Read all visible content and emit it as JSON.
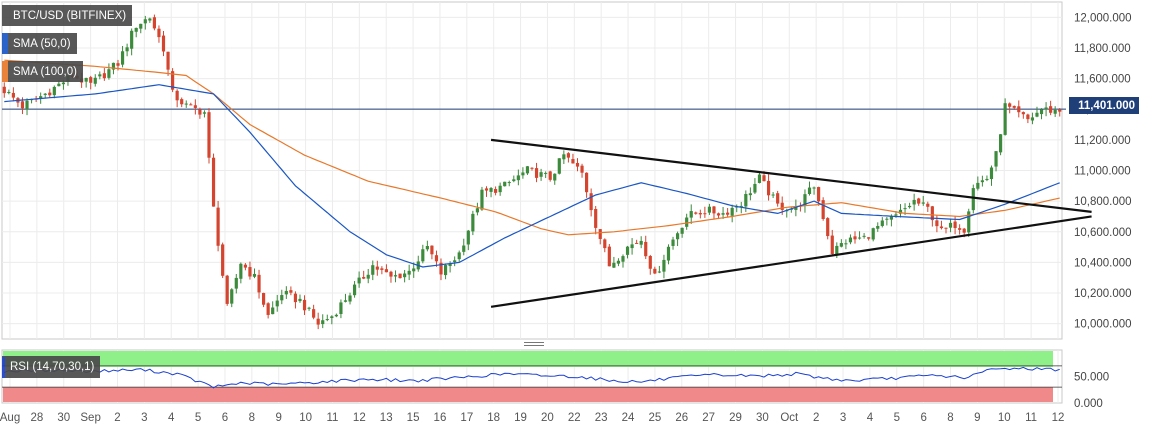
{
  "chart_data": [
    {
      "type": "candlestick",
      "instrument_label": "BTC/USD (BITFINEX)",
      "legend": [
        {
          "label": "BTC/USD (BITFINEX)",
          "color": "#4a4a4a"
        },
        {
          "label": "SMA (50,0)",
          "color": "#1a56c4"
        },
        {
          "label": "SMA (100,0)",
          "color": "#e8782a"
        }
      ],
      "last_price_label": "11,401.000",
      "last_price": 11401,
      "ylim": [
        9900,
        12100
      ],
      "y_ticks": [
        10000,
        10200,
        10400,
        10600,
        10800,
        11000,
        11200,
        11400,
        11600,
        11800,
        12000
      ],
      "y_tick_labels": [
        "10,000.000",
        "10,200.000",
        "10,400.000",
        "10,600.000",
        "10,800.000",
        "11,000.000",
        "11,200.000",
        "11,400.000",
        "11,600.000",
        "11,800.000",
        "12,000.000"
      ],
      "x_tick_labels": [
        "Aug",
        "28",
        "30",
        "Sep",
        "2",
        "3",
        "4",
        "5",
        "6",
        "8",
        "9",
        "10",
        "11",
        "12",
        "13",
        "15",
        "16",
        "17",
        "18",
        "19",
        "20",
        "22",
        "23",
        "24",
        "25",
        "26",
        "27",
        "29",
        "30",
        "Oct",
        "2",
        "3",
        "4",
        "5",
        "6",
        "8",
        "9",
        "10",
        "11",
        "12"
      ],
      "ohlc_keypoints": [
        [
          0,
          11550
        ],
        [
          5,
          11420
        ],
        [
          10,
          11500
        ],
        [
          16,
          11620
        ],
        [
          20,
          11560
        ],
        [
          26,
          11700
        ],
        [
          30,
          11950
        ],
        [
          33,
          12000
        ],
        [
          36,
          11800
        ],
        [
          38,
          11500
        ],
        [
          41,
          11420
        ],
        [
          45,
          11380
        ],
        [
          47,
          10750
        ],
        [
          50,
          10100
        ],
        [
          53,
          10400
        ],
        [
          56,
          10300
        ],
        [
          59,
          10050
        ],
        [
          62,
          10200
        ],
        [
          66,
          10150
        ],
        [
          70,
          10000
        ],
        [
          73,
          10050
        ],
        [
          77,
          10200
        ],
        [
          82,
          10380
        ],
        [
          86,
          10300
        ],
        [
          90,
          10340
        ],
        [
          94,
          10500
        ],
        [
          97,
          10330
        ],
        [
          101,
          10460
        ],
        [
          106,
          10850
        ],
        [
          111,
          10900
        ],
        [
          116,
          11000
        ],
        [
          121,
          10950
        ],
        [
          124,
          11100
        ],
        [
          128,
          10980
        ],
        [
          131,
          10650
        ],
        [
          134,
          10380
        ],
        [
          138,
          10500
        ],
        [
          141,
          10550
        ],
        [
          144,
          10300
        ],
        [
          147,
          10500
        ],
        [
          151,
          10700
        ],
        [
          155,
          10740
        ],
        [
          159,
          10720
        ],
        [
          163,
          10790
        ],
        [
          167,
          10950
        ],
        [
          171,
          10770
        ],
        [
          175,
          10750
        ],
        [
          179,
          10900
        ],
        [
          181,
          10700
        ],
        [
          183,
          10470
        ],
        [
          186,
          10540
        ],
        [
          190,
          10560
        ],
        [
          193,
          10630
        ],
        [
          197,
          10700
        ],
        [
          201,
          10800
        ],
        [
          204,
          10750
        ],
        [
          207,
          10600
        ],
        [
          210,
          10650
        ],
        [
          212,
          10620
        ],
        [
          214,
          10900
        ],
        [
          217,
          10950
        ],
        [
          219,
          11100
        ],
        [
          221,
          11420
        ],
        [
          223,
          11380
        ],
        [
          226,
          11330
        ],
        [
          229,
          11400
        ],
        [
          232,
          11390
        ]
      ],
      "sma50_keypoints": [
        [
          0,
          11450
        ],
        [
          20,
          11500
        ],
        [
          34,
          11560
        ],
        [
          46,
          11500
        ],
        [
          54,
          11250
        ],
        [
          64,
          10900
        ],
        [
          76,
          10600
        ],
        [
          84,
          10450
        ],
        [
          92,
          10370
        ],
        [
          100,
          10400
        ],
        [
          110,
          10560
        ],
        [
          120,
          10700
        ],
        [
          130,
          10840
        ],
        [
          140,
          10920
        ],
        [
          150,
          10850
        ],
        [
          160,
          10770
        ],
        [
          170,
          10720
        ],
        [
          178,
          10800
        ],
        [
          184,
          10720
        ],
        [
          196,
          10700
        ],
        [
          210,
          10680
        ],
        [
          220,
          10780
        ],
        [
          232,
          10920
        ]
      ],
      "sma100_keypoints": [
        [
          0,
          11720
        ],
        [
          20,
          11680
        ],
        [
          34,
          11640
        ],
        [
          40,
          11620
        ],
        [
          46,
          11500
        ],
        [
          54,
          11300
        ],
        [
          66,
          11100
        ],
        [
          80,
          10930
        ],
        [
          96,
          10820
        ],
        [
          108,
          10730
        ],
        [
          118,
          10620
        ],
        [
          124,
          10580
        ],
        [
          134,
          10600
        ],
        [
          146,
          10640
        ],
        [
          160,
          10700
        ],
        [
          172,
          10760
        ],
        [
          184,
          10790
        ],
        [
          198,
          10720
        ],
        [
          210,
          10700
        ],
        [
          220,
          10740
        ],
        [
          232,
          10820
        ]
      ],
      "triangle_upper": [
        [
          107,
          11200
        ],
        [
          239,
          10730
        ]
      ],
      "triangle_lower": [
        [
          107,
          10110
        ],
        [
          239,
          10700
        ]
      ],
      "candle_count": 233
    },
    {
      "type": "line",
      "title": "RSI (14,70,30,1)",
      "y_tick_labels": [
        "50.000",
        "0.000"
      ],
      "ylim": [
        0,
        100
      ],
      "upper_band": 70,
      "lower_band": 30,
      "upper_band_color": "#8ff08a",
      "lower_band_color": "#f08a8a",
      "series_color": "#1a3fd0",
      "rsi_keypoints": [
        [
          0,
          60
        ],
        [
          10,
          62
        ],
        [
          20,
          60
        ],
        [
          30,
          63
        ],
        [
          38,
          55
        ],
        [
          46,
          30
        ],
        [
          52,
          38
        ],
        [
          60,
          35
        ],
        [
          70,
          40
        ],
        [
          80,
          45
        ],
        [
          90,
          42
        ],
        [
          100,
          48
        ],
        [
          110,
          55
        ],
        [
          118,
          52
        ],
        [
          126,
          50
        ],
        [
          134,
          42
        ],
        [
          140,
          40
        ],
        [
          148,
          48
        ],
        [
          156,
          53
        ],
        [
          166,
          51
        ],
        [
          174,
          55
        ],
        [
          180,
          47
        ],
        [
          186,
          42
        ],
        [
          194,
          46
        ],
        [
          204,
          52
        ],
        [
          212,
          48
        ],
        [
          216,
          62
        ],
        [
          222,
          66
        ],
        [
          232,
          63
        ]
      ]
    }
  ]
}
